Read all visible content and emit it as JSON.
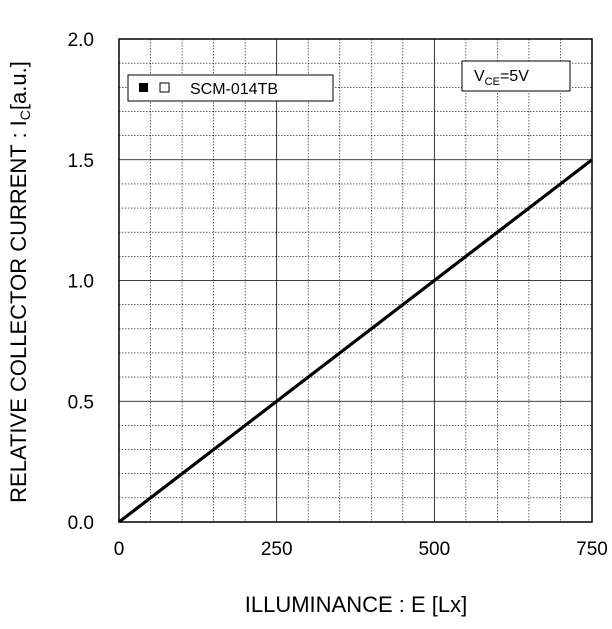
{
  "chart_data": {
    "type": "line",
    "xlabel": "ILLUMINANCE : E [Lx]",
    "ylabel": {
      "prefix": "RELATIVE  COLLECTOR CURRENT : I",
      "sub": "C",
      "suffix": "[a.u.]"
    },
    "xlim": [
      0,
      750
    ],
    "ylim": [
      0,
      2.0
    ],
    "x_ticks": [
      0,
      250,
      500,
      750
    ],
    "x_tick_labels": [
      "0",
      "250",
      "500",
      "750"
    ],
    "y_ticks": [
      0,
      0.5,
      1.0,
      1.5,
      2.0
    ],
    "y_tick_labels": [
      "0.0",
      "0.5",
      "1.0",
      "1.5",
      "2.0"
    ],
    "x_minor_step": 50,
    "y_minor_step": 0.1,
    "grid": true,
    "series": [
      {
        "name": "SCM-014TB",
        "x": [
          0,
          750
        ],
        "y": [
          0,
          1.5
        ],
        "color": "#000000"
      }
    ],
    "legend": {
      "position": "top-left",
      "label": "SCM-014TB"
    },
    "annotation": {
      "main": "V",
      "sub": "CE",
      "rest": "=5V",
      "position": "top-right"
    }
  }
}
